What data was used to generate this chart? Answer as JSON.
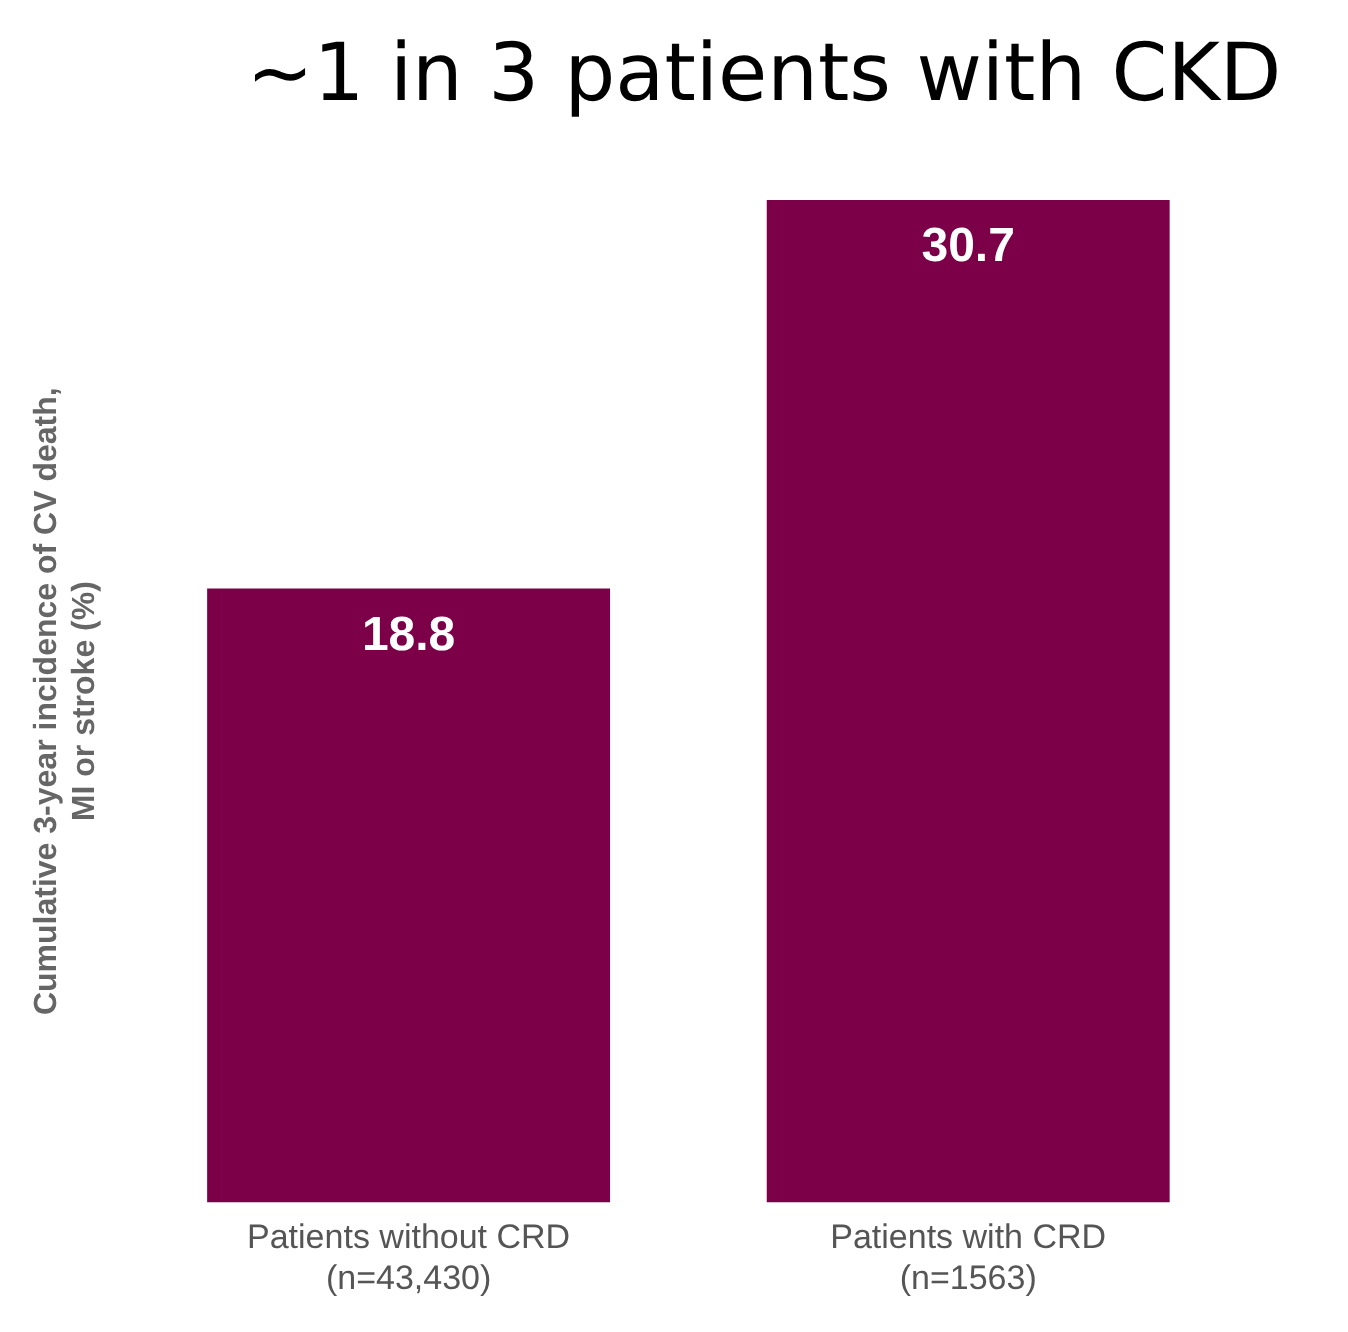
{
  "chart_data": {
    "type": "bar",
    "title": "~1 in 3 patients with CKD",
    "ylabel": "Cumulative 3-year incidence of CV death, MI or stroke (%)",
    "categories": [
      "Patients without CRD\n(n=43,430)",
      "Patients with CRD\n(n=1563)"
    ],
    "values": [
      18.8,
      30.7
    ],
    "color": "#7b0048",
    "data_labels": true,
    "grid": false,
    "legend": false,
    "tick_labels": "x"
  }
}
